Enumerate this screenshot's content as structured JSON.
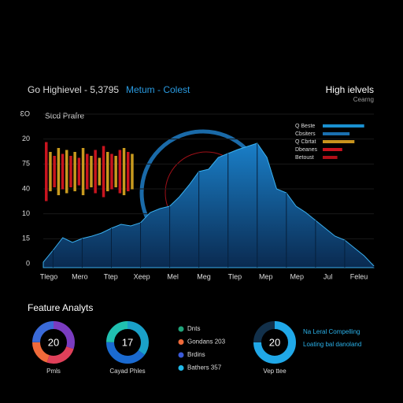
{
  "header": {
    "title": "Go Highievel - 5,3795",
    "highlight": "Metum - Colest",
    "right_title": "High ielvels",
    "right_subtitle": "Cearng"
  },
  "area_chart": {
    "type": "area",
    "subtitle": "Stcd Prafre",
    "y_labels": [
      "ƐO",
      "20",
      "75",
      "40",
      "10",
      "15",
      "0"
    ],
    "x_labels": [
      "Tlego",
      "Mero",
      "Ttep",
      "Xeep",
      "Mel",
      "Meg",
      "Tlep",
      "Mep",
      "Mep",
      "Jul",
      "Feleu"
    ],
    "values": [
      3.5,
      11,
      19,
      16,
      18.5,
      20,
      22,
      25,
      27.5,
      26.5,
      28.5,
      35,
      37.5,
      39,
      45,
      52.5,
      61,
      62.5,
      70,
      72.5,
      75,
      77,
      79,
      70,
      50,
      47.5,
      39,
      35,
      30,
      25,
      20,
      17.5,
      12.5,
      7.5,
      1
    ],
    "ylim": [
      0,
      100
    ],
    "color": "#1a7fc8"
  },
  "bar_inset": {
    "values": [
      75,
      50,
      40,
      60,
      45,
      55,
      40,
      50,
      35,
      60,
      45,
      40,
      55,
      35,
      65,
      50,
      45,
      40,
      55,
      60,
      50,
      45
    ],
    "colors": [
      "#c8141e",
      "#c89a1e"
    ]
  },
  "legend": [
    {
      "label": "Q Beste",
      "value": 85,
      "color": "#1a90d0"
    },
    {
      "label": "Cbsiters",
      "value": 55,
      "color": "#1a70b0"
    },
    {
      "label": "Q Cbrtat",
      "value": 65,
      "color": "#c8941e"
    },
    {
      "label": "Dbeanes",
      "value": 40,
      "color": "#c8141e"
    },
    {
      "label": "Betoust",
      "value": 30,
      "color": "#b01018"
    }
  ],
  "features": {
    "title": "Feature Analyts",
    "donuts": [
      {
        "center": "20",
        "label": "Pmls",
        "segments": [
          {
            "value": 30,
            "color": "#7a3cc0"
          },
          {
            "value": 25,
            "color": "#e0405a"
          },
          {
            "value": 20,
            "color": "#f06a3a"
          },
          {
            "value": 25,
            "color": "#3a6ad8"
          }
        ]
      },
      {
        "center": "17",
        "label": "Cayad Phles",
        "segments": [
          {
            "value": 35,
            "color": "#1aa0c8"
          },
          {
            "value": 40,
            "color": "#1a6ad0"
          },
          {
            "value": 25,
            "color": "#20c0b0"
          }
        ]
      },
      {
        "center": "20",
        "label": "Vep ttee",
        "segments": [
          {
            "value": 75,
            "color": "#20a8e8"
          },
          {
            "value": 25,
            "color": "#12304a"
          }
        ]
      }
    ],
    "list": [
      {
        "label": "Dnts",
        "color": "#1fa37a"
      },
      {
        "label": "Gondans 203",
        "color": "#f06a3a"
      },
      {
        "label": "Brdins",
        "color": "#3a5ad8"
      },
      {
        "label": "Bathers 357",
        "color": "#20b8e8"
      }
    ],
    "notes": [
      "Na Leral Compelling",
      "Loating bal danoland"
    ]
  }
}
